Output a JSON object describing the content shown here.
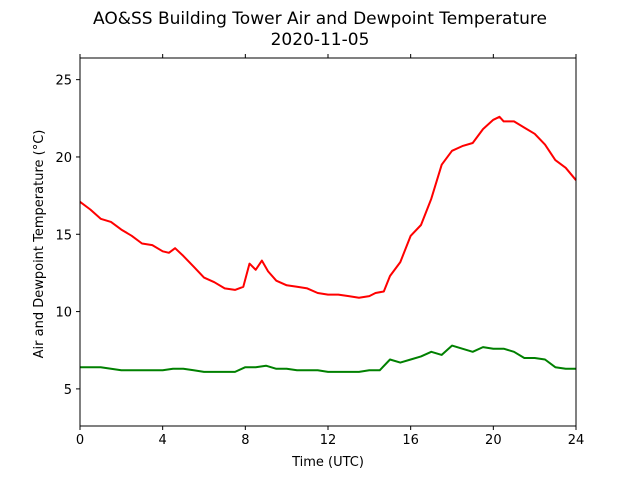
{
  "chart_data": {
    "type": "line",
    "title": "AO&SS Building Tower Air and Dewpoint Temperature",
    "subtitle": "2020-11-05",
    "xlabel": "Time (UTC)",
    "ylabel": "Air and Dewpoint Temperature (°C)",
    "xlim": [
      0,
      24
    ],
    "ylim": [
      2.6,
      26.4
    ],
    "xticks": [
      0,
      4,
      8,
      12,
      16,
      20,
      24
    ],
    "xtick_labels": [
      "0",
      "4",
      "8",
      "12",
      "16",
      "20",
      "24"
    ],
    "yticks": [
      5,
      10,
      15,
      20,
      25
    ],
    "ytick_labels": [
      "5",
      "10",
      "15",
      "20",
      "25"
    ],
    "grid": false,
    "series": [
      {
        "color": "#ff0000",
        "x": [
          0,
          0.5,
          1,
          1.5,
          2,
          2.5,
          3,
          3.5,
          4,
          4.3,
          4.6,
          5,
          5.5,
          6,
          6.5,
          7,
          7.5,
          7.9,
          8.2,
          8.5,
          8.8,
          9.1,
          9.5,
          10,
          10.5,
          11,
          11.5,
          12,
          12.5,
          13,
          13.5,
          14,
          14.3,
          14.7,
          15,
          15.5,
          16,
          16.5,
          17,
          17.5,
          18,
          18.5,
          19,
          19.5,
          20,
          20.3,
          20.5,
          21,
          21.5,
          22,
          22.5,
          23,
          23.5,
          24
        ],
        "y": [
          17.1,
          16.6,
          16.0,
          15.8,
          15.3,
          14.9,
          14.4,
          14.3,
          13.9,
          13.8,
          14.1,
          13.6,
          12.9,
          12.2,
          11.9,
          11.5,
          11.4,
          11.6,
          13.1,
          12.7,
          13.3,
          12.6,
          12.0,
          11.7,
          11.6,
          11.5,
          11.2,
          11.1,
          11.1,
          11.0,
          10.9,
          11.0,
          11.2,
          11.3,
          12.3,
          13.2,
          14.9,
          15.6,
          17.3,
          19.5,
          20.4,
          20.7,
          20.9,
          21.8,
          22.4,
          22.6,
          22.3,
          22.3,
          21.9,
          21.5,
          20.8,
          19.8,
          19.3,
          18.5
        ]
      },
      {
        "color": "#008000",
        "x": [
          0,
          0.5,
          1,
          1.5,
          2,
          2.5,
          3,
          3.5,
          4,
          4.5,
          5,
          5.5,
          6,
          6.5,
          7,
          7.5,
          8,
          8.5,
          9,
          9.5,
          10,
          10.5,
          11,
          11.5,
          12,
          12.5,
          13,
          13.5,
          14,
          14.5,
          15,
          15.5,
          16,
          16.5,
          17,
          17.5,
          18,
          18.5,
          19,
          19.5,
          20,
          20.5,
          21,
          21.5,
          22,
          22.5,
          23,
          23.5,
          24
        ],
        "y": [
          6.4,
          6.4,
          6.4,
          6.3,
          6.2,
          6.2,
          6.2,
          6.2,
          6.2,
          6.3,
          6.3,
          6.2,
          6.1,
          6.1,
          6.1,
          6.1,
          6.4,
          6.4,
          6.5,
          6.3,
          6.3,
          6.2,
          6.2,
          6.2,
          6.1,
          6.1,
          6.1,
          6.1,
          6.2,
          6.2,
          6.9,
          6.7,
          6.9,
          7.1,
          7.4,
          7.2,
          7.8,
          7.6,
          7.4,
          7.7,
          7.6,
          7.6,
          7.4,
          7.0,
          7.0,
          6.9,
          6.4,
          6.3,
          6.3
        ]
      }
    ]
  }
}
